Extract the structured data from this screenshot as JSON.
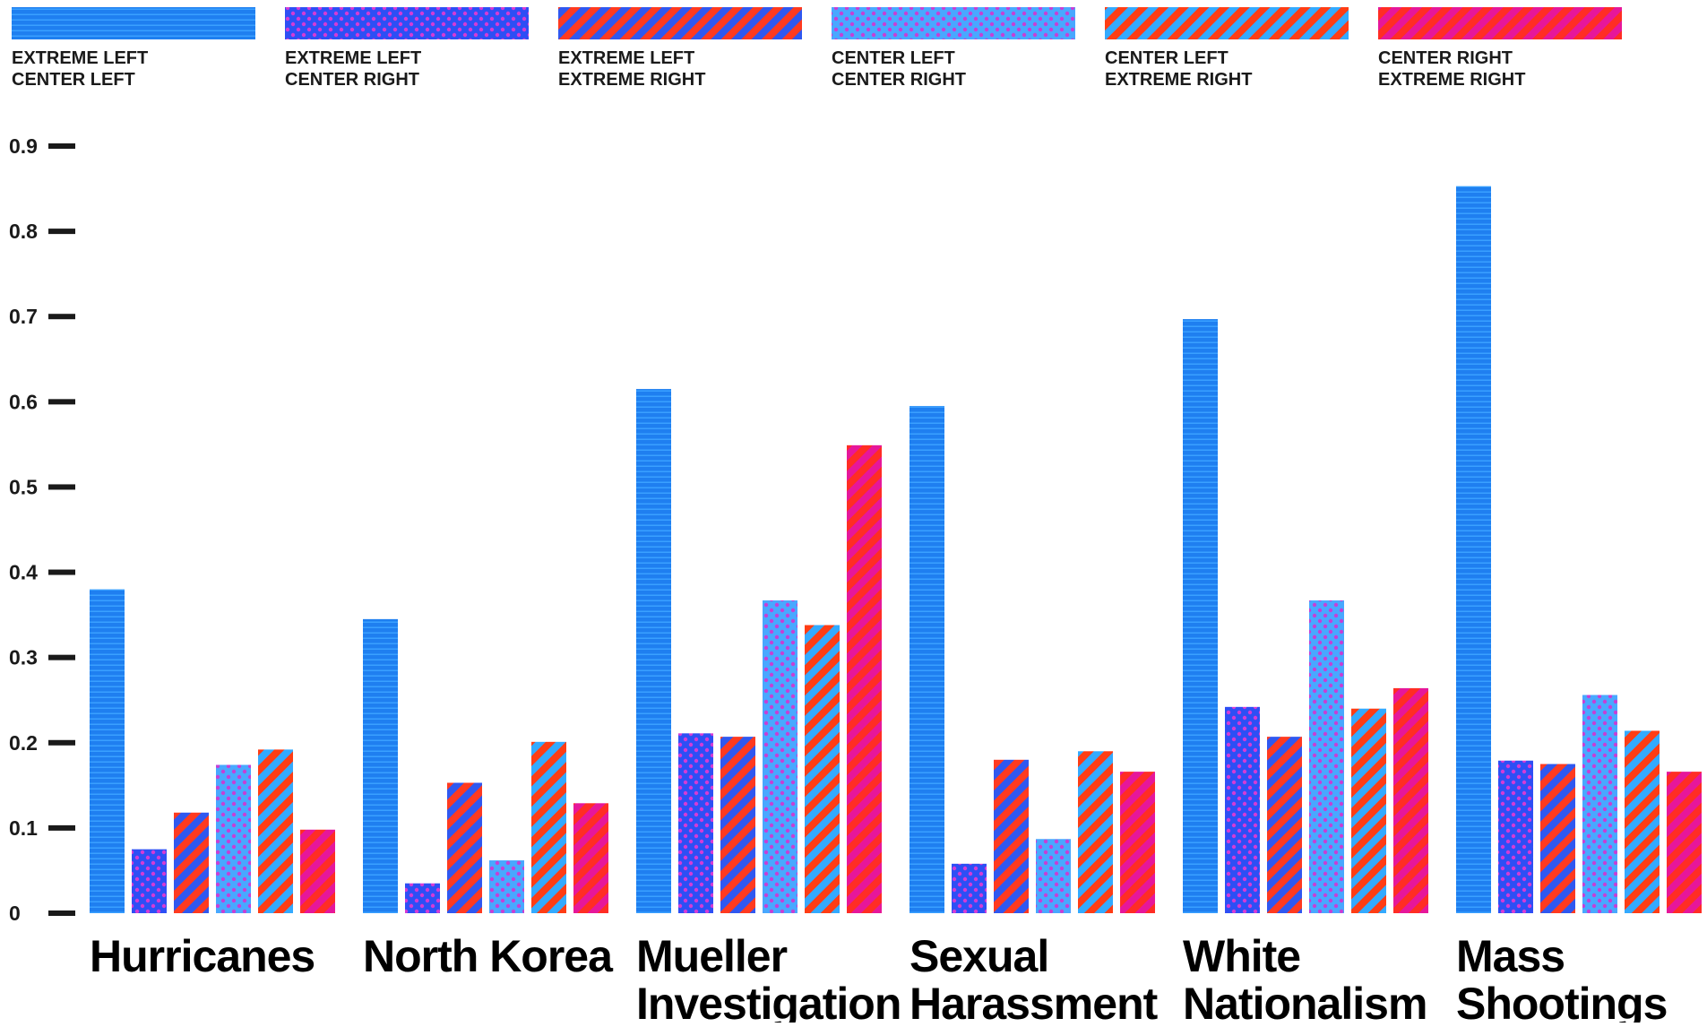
{
  "chart_data": {
    "type": "bar",
    "title": "",
    "xlabel": "",
    "ylabel": "",
    "ylim": [
      0,
      0.9
    ],
    "yticks": [
      "0",
      "0.1",
      "0.2",
      "0.3",
      "0.4",
      "0.5",
      "0.6",
      "0.7",
      "0.8",
      "0.9"
    ],
    "grid": false,
    "legend_position": "top",
    "categories": [
      [
        "Hurricanes"
      ],
      [
        "North Korea"
      ],
      [
        "Mueller",
        "Investigation"
      ],
      [
        "Sexual",
        "Harassment"
      ],
      [
        "White",
        "Nationalism"
      ],
      [
        "Mass",
        "Shootings"
      ]
    ],
    "series": [
      {
        "name": [
          "EXTREME LEFT",
          "CENTER LEFT"
        ],
        "pattern": "horizontal-lines",
        "colors": [
          "#1f7ff0",
          "#3aa0ff"
        ],
        "values": [
          0.38,
          0.345,
          0.615,
          0.595,
          0.697,
          0.853
        ]
      },
      {
        "name": [
          "EXTREME LEFT",
          "CENTER RIGHT"
        ],
        "pattern": "dots",
        "colors": [
          "#2d4ff5",
          "#d43bd6"
        ],
        "values": [
          0.075,
          0.035,
          0.211,
          0.058,
          0.242,
          0.179
        ]
      },
      {
        "name": [
          "EXTREME LEFT",
          "EXTREME RIGHT"
        ],
        "pattern": "diagonal-stripes",
        "colors": [
          "#ff3a1f",
          "#2f58f0"
        ],
        "values": [
          0.118,
          0.153,
          0.207,
          0.18,
          0.207,
          0.175
        ]
      },
      {
        "name": [
          "CENTER LEFT",
          "CENTER RIGHT"
        ],
        "pattern": "dots",
        "colors": [
          "#48a8ff",
          "#c63fd6"
        ],
        "values": [
          0.174,
          0.062,
          0.367,
          0.087,
          0.367,
          0.256
        ]
      },
      {
        "name": [
          "CENTER LEFT",
          "EXTREME RIGHT"
        ],
        "pattern": "diagonal-stripes",
        "colors": [
          "#ff3d14",
          "#33aaff"
        ],
        "values": [
          0.192,
          0.201,
          0.338,
          0.19,
          0.24,
          0.214
        ]
      },
      {
        "name": [
          "CENTER RIGHT",
          "EXTREME RIGHT"
        ],
        "pattern": "diagonal-stripes",
        "colors": [
          "#ff2d24",
          "#e6179a"
        ],
        "values": [
          0.098,
          0.129,
          0.549,
          0.166,
          0.264,
          0.166
        ]
      }
    ]
  }
}
